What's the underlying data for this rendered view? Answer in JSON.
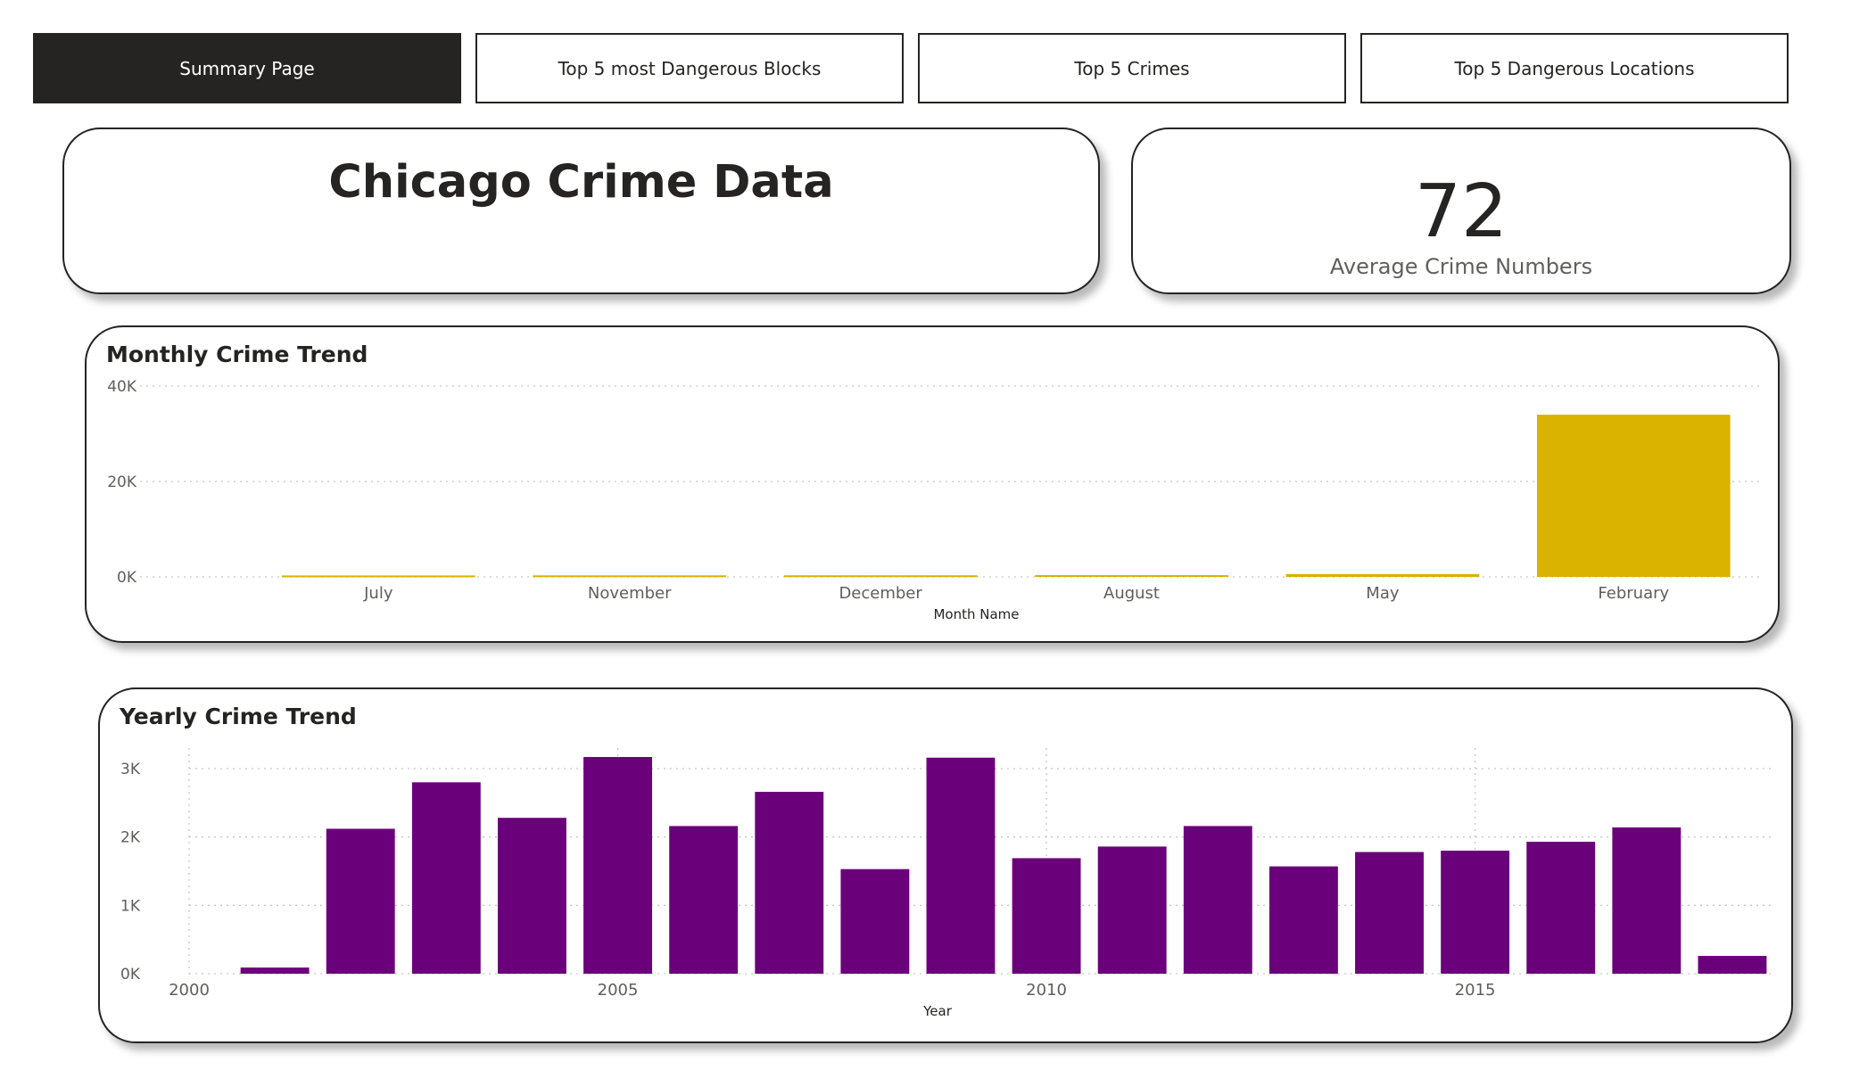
{
  "nav": {
    "tabs": [
      {
        "label": "Summary Page",
        "active": true
      },
      {
        "label": "Top 5 most Dangerous Blocks",
        "active": false
      },
      {
        "label": "Top 5 Crimes",
        "active": false
      },
      {
        "label": "Top 5 Dangerous Locations",
        "active": false
      }
    ]
  },
  "header": {
    "title": "Chicago Crime Data"
  },
  "kpi": {
    "value": "72",
    "label": "Average Crime Numbers"
  },
  "colors": {
    "monthly_bar": "#D9B300",
    "yearly_bar": "#6B007B",
    "text": "#252423",
    "axis_text": "#605e5c"
  },
  "chart_data": [
    {
      "type": "bar",
      "title": "Monthly Crime Trend",
      "xlabel": "Month Name",
      "ylabel": "",
      "categories": [
        "July",
        "November",
        "December",
        "August",
        "May",
        "February"
      ],
      "values": [
        300,
        320,
        330,
        380,
        600,
        34000
      ],
      "ylim": [
        0,
        40000
      ],
      "yticks": [
        0,
        20000,
        40000
      ],
      "ytick_labels": [
        "0K",
        "20K",
        "40K"
      ],
      "grid": true
    },
    {
      "type": "bar",
      "title": "Yearly Crime Trend",
      "xlabel": "Year",
      "ylabel": "",
      "x": [
        2001,
        2002,
        2003,
        2004,
        2005,
        2006,
        2007,
        2008,
        2009,
        2010,
        2011,
        2012,
        2013,
        2014,
        2015,
        2016,
        2017,
        2018
      ],
      "values": [
        90,
        2120,
        2800,
        2280,
        3170,
        2160,
        2660,
        1530,
        3160,
        1690,
        1860,
        2160,
        1570,
        1780,
        1800,
        1930,
        2140,
        260
      ],
      "xlim": [
        2000,
        2018.5
      ],
      "xticks": [
        2000,
        2005,
        2010,
        2015
      ],
      "ylim": [
        0,
        3300
      ],
      "yticks": [
        0,
        1000,
        2000,
        3000
      ],
      "ytick_labels": [
        "0K",
        "1K",
        "2K",
        "3K"
      ],
      "grid": true
    }
  ]
}
